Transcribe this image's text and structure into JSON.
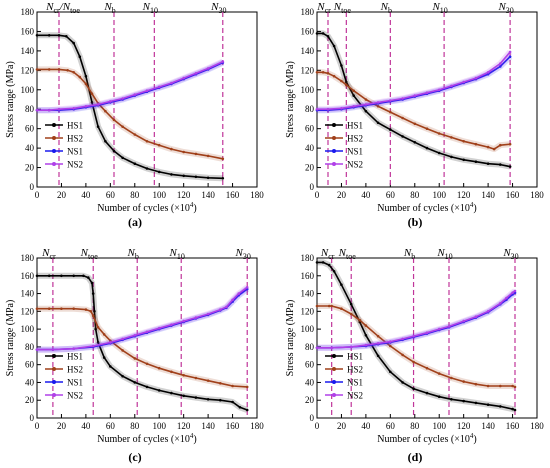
{
  "chart_data": [
    {
      "panel_label": "(a)",
      "type": "line",
      "xlabel": "Number of cycles (×10",
      "xlabel_exp": "4",
      "ylabel": "Stress range (MPa)",
      "xlim": [
        0,
        180
      ],
      "ylim": [
        0,
        180
      ],
      "xticks": [
        0,
        20,
        40,
        60,
        80,
        100,
        120,
        140,
        160,
        180
      ],
      "yticks": [
        0,
        20,
        40,
        60,
        80,
        100,
        120,
        140,
        160,
        180
      ],
      "markers": [
        {
          "label": "N",
          "sub": "cr",
          "x": 18,
          "label2": "/N",
          "sub2": "toe"
        },
        {
          "label": "N",
          "sub": "b",
          "x": 63
        },
        {
          "label": "N",
          "sub": "10",
          "x": 96
        },
        {
          "label": "N",
          "sub": "30",
          "x": 152
        }
      ],
      "legend": [
        "HS1",
        "HS2",
        "NS1",
        "NS2"
      ],
      "series": [
        {
          "name": "HS1",
          "color": "#000000",
          "x": [
            0,
            10,
            18,
            24,
            30,
            35,
            40,
            45,
            50,
            56,
            63,
            70,
            80,
            90,
            100,
            110,
            120,
            130,
            140,
            152
          ],
          "y": [
            156,
            156,
            156,
            155,
            148,
            134,
            114,
            87,
            62,
            47,
            37,
            30,
            24,
            19,
            15.5,
            13,
            11.5,
            10.5,
            9.5,
            9
          ]
        },
        {
          "name": "HS2",
          "color": "#a0401a",
          "x": [
            0,
            10,
            18,
            25,
            30,
            35,
            40,
            45,
            50,
            56,
            63,
            70,
            80,
            90,
            100,
            110,
            120,
            130,
            140,
            152
          ],
          "y": [
            121,
            121,
            121,
            120,
            118,
            113,
            106,
            96,
            86,
            78,
            69,
            62,
            54,
            47,
            43,
            39,
            36,
            34,
            32,
            29
          ]
        },
        {
          "name": "NS1",
          "color": "#1a1aee",
          "x": [
            0,
            10,
            18,
            30,
            40,
            50,
            60,
            70,
            80,
            90,
            100,
            110,
            120,
            130,
            140,
            152
          ],
          "y": [
            79,
            79,
            79,
            80,
            82,
            84,
            87,
            90,
            94,
            98,
            102,
            106,
            111,
            116,
            121,
            128
          ]
        },
        {
          "name": "NS2",
          "color": "#b040e8",
          "x": [
            0,
            10,
            18,
            30,
            40,
            50,
            60,
            70,
            80,
            90,
            100,
            110,
            120,
            130,
            140,
            152
          ],
          "y": [
            79,
            79,
            80,
            81,
            83,
            85,
            88,
            91,
            95,
            99,
            103,
            107,
            112,
            117,
            122,
            129
          ]
        }
      ]
    },
    {
      "panel_label": "(b)",
      "type": "line",
      "xlabel": "Number of cycles (×10",
      "xlabel_exp": "4",
      "ylabel": "Stress range (MPa)",
      "xlim": [
        0,
        180
      ],
      "ylim": [
        0,
        180
      ],
      "xticks": [
        0,
        20,
        40,
        60,
        80,
        100,
        120,
        140,
        160,
        180
      ],
      "yticks": [
        0,
        20,
        40,
        60,
        80,
        100,
        120,
        140,
        160,
        180
      ],
      "markers": [
        {
          "label": "N",
          "sub": "cr",
          "x": 9
        },
        {
          "label": "N",
          "sub": "toe",
          "x": 24
        },
        {
          "label": "N",
          "sub": "b",
          "x": 60
        },
        {
          "label": "N",
          "sub": "10",
          "x": 104
        },
        {
          "label": "N",
          "sub": "30",
          "x": 158
        }
      ],
      "legend": [
        "HS1",
        "HS2",
        "NS1",
        "NS2"
      ],
      "series": [
        {
          "name": "HS1",
          "color": "#000000",
          "x": [
            0,
            5,
            9,
            14,
            20,
            24,
            30,
            40,
            50,
            60,
            70,
            80,
            90,
            100,
            110,
            120,
            130,
            140,
            150,
            158
          ],
          "y": [
            158,
            158,
            155,
            145,
            125,
            108,
            94,
            78,
            66,
            59,
            52,
            46,
            40,
            35,
            31,
            28,
            26,
            24,
            23,
            21
          ]
        },
        {
          "name": "HS2",
          "color": "#a0401a",
          "x": [
            0,
            5,
            9,
            14,
            20,
            24,
            30,
            40,
            50,
            60,
            70,
            80,
            90,
            100,
            110,
            120,
            130,
            140,
            145,
            150,
            158
          ],
          "y": [
            118,
            118,
            117,
            114,
            109,
            105,
            99,
            90,
            83,
            77,
            71,
            65,
            60,
            55,
            51,
            47,
            44,
            41,
            39,
            43,
            44
          ]
        },
        {
          "name": "NS1",
          "color": "#1a1aee",
          "x": [
            0,
            9,
            20,
            30,
            40,
            50,
            60,
            70,
            80,
            90,
            100,
            110,
            120,
            130,
            140,
            150,
            158
          ],
          "y": [
            79,
            79,
            80,
            82,
            84,
            86,
            88,
            90,
            93,
            96,
            99,
            103,
            107,
            111,
            116,
            124,
            134
          ]
        },
        {
          "name": "NS2",
          "color": "#b040e8",
          "x": [
            0,
            9,
            20,
            30,
            40,
            50,
            60,
            70,
            80,
            90,
            100,
            110,
            120,
            130,
            140,
            150,
            158
          ],
          "y": [
            80,
            80,
            81,
            83,
            85,
            87,
            89,
            91,
            94,
            97,
            100,
            104,
            108,
            112,
            118,
            127,
            139
          ]
        }
      ]
    },
    {
      "panel_label": "(c)",
      "type": "line",
      "xlabel": "Number of cycles (×10",
      "xlabel_exp": "4",
      "ylabel": "Stress range (MPa)",
      "xlim": [
        0,
        180
      ],
      "ylim": [
        0,
        180
      ],
      "xticks": [
        0,
        20,
        40,
        60,
        80,
        100,
        120,
        140,
        160,
        180
      ],
      "yticks": [
        0,
        20,
        40,
        60,
        80,
        100,
        120,
        140,
        160,
        180
      ],
      "markers": [
        {
          "label": "N",
          "sub": "cr",
          "x": 13
        },
        {
          "label": "N",
          "sub": "toe",
          "x": 46
        },
        {
          "label": "N",
          "sub": "b",
          "x": 82
        },
        {
          "label": "N",
          "sub": "10",
          "x": 118
        },
        {
          "label": "N",
          "sub": "30",
          "x": 172
        }
      ],
      "legend": [
        "HS1",
        "HS2",
        "NS1",
        "NS2"
      ],
      "series": [
        {
          "name": "HS1",
          "color": "#000000",
          "x": [
            0,
            10,
            20,
            30,
            38,
            42,
            45,
            46,
            47,
            48,
            50,
            55,
            60,
            70,
            80,
            90,
            100,
            110,
            120,
            130,
            140,
            150,
            160,
            166,
            172
          ],
          "y": [
            160,
            160,
            160,
            160,
            160,
            158,
            152,
            140,
            120,
            100,
            85,
            68,
            58,
            47,
            40,
            35,
            31,
            28,
            25,
            23,
            21,
            20,
            18,
            12,
            9
          ]
        },
        {
          "name": "HS2",
          "color": "#a0401a",
          "x": [
            0,
            10,
            20,
            30,
            40,
            44,
            46,
            50,
            55,
            60,
            70,
            80,
            90,
            100,
            110,
            120,
            130,
            140,
            150,
            160,
            172
          ],
          "y": [
            123,
            123,
            123,
            123,
            122,
            120,
            115,
            102,
            94,
            87,
            76,
            67,
            61,
            56,
            52,
            48,
            45,
            42,
            39,
            36,
            35
          ]
        },
        {
          "name": "NS1",
          "color": "#1a1aee",
          "x": [
            0,
            13,
            30,
            46,
            60,
            70,
            80,
            90,
            100,
            110,
            120,
            130,
            140,
            150,
            155,
            160,
            165,
            172
          ],
          "y": [
            77,
            77,
            78,
            80,
            84,
            88,
            92,
            96,
            100,
            104,
            108,
            112,
            116,
            121,
            124,
            131,
            138,
            145
          ]
        },
        {
          "name": "NS2",
          "color": "#b040e8",
          "x": [
            0,
            13,
            30,
            46,
            60,
            70,
            80,
            90,
            100,
            110,
            120,
            130,
            140,
            150,
            155,
            160,
            165,
            172
          ],
          "y": [
            77,
            77,
            78,
            81,
            85,
            89,
            93,
            97,
            101,
            105,
            109,
            113,
            117,
            122,
            125,
            133,
            140,
            147
          ]
        }
      ]
    },
    {
      "panel_label": "(d)",
      "type": "line",
      "xlabel": "Number of cycles (×10",
      "xlabel_exp": "4",
      "ylabel": "Stress range (MPa)",
      "xlim": [
        0,
        180
      ],
      "ylim": [
        0,
        180
      ],
      "xticks": [
        0,
        20,
        40,
        60,
        80,
        100,
        120,
        140,
        160,
        180
      ],
      "yticks": [
        0,
        20,
        40,
        60,
        80,
        100,
        120,
        140,
        160,
        180
      ],
      "markers": [
        {
          "label": "N",
          "sub": "cr",
          "x": 12
        },
        {
          "label": "N",
          "sub": "toe",
          "x": 28
        },
        {
          "label": "N",
          "sub": "b",
          "x": 79
        },
        {
          "label": "N",
          "sub": "10",
          "x": 108
        },
        {
          "label": "N",
          "sub": "30",
          "x": 162
        }
      ],
      "legend": [
        "HS1",
        "HS2",
        "NS1",
        "NS2"
      ],
      "series": [
        {
          "name": "HS1",
          "color": "#000000",
          "x": [
            0,
            5,
            10,
            14,
            20,
            28,
            35,
            40,
            50,
            60,
            70,
            79,
            90,
            100,
            110,
            120,
            130,
            140,
            150,
            160,
            162
          ],
          "y": [
            175,
            175,
            172,
            165,
            150,
            128,
            108,
            93,
            70,
            52,
            40,
            33,
            28,
            24,
            21,
            19,
            17,
            15,
            13,
            10,
            9
          ]
        },
        {
          "name": "HS2",
          "color": "#a0401a",
          "x": [
            0,
            10,
            12,
            20,
            28,
            35,
            40,
            50,
            60,
            70,
            79,
            90,
            100,
            110,
            120,
            130,
            140,
            150,
            160,
            162
          ],
          "y": [
            126,
            126,
            126,
            123,
            117,
            110,
            104,
            92,
            81,
            71,
            63,
            56,
            50,
            45,
            41,
            38,
            36,
            36,
            36,
            35
          ]
        },
        {
          "name": "NS1",
          "color": "#1a1aee",
          "x": [
            0,
            12,
            28,
            40,
            50,
            60,
            70,
            79,
            90,
            100,
            108,
            120,
            130,
            140,
            150,
            155,
            160,
            162
          ],
          "y": [
            79,
            79,
            80,
            81,
            83,
            85,
            88,
            91,
            95,
            99,
            102,
            108,
            113,
            119,
            128,
            133,
            139,
            141
          ]
        },
        {
          "name": "NS2",
          "color": "#b040e8",
          "x": [
            0,
            12,
            28,
            40,
            50,
            60,
            70,
            79,
            90,
            100,
            108,
            120,
            130,
            140,
            150,
            155,
            160,
            162
          ],
          "y": [
            79,
            79,
            80,
            82,
            84,
            86,
            89,
            92,
            96,
            100,
            103,
            109,
            114,
            120,
            129,
            135,
            141,
            143
          ]
        }
      ]
    }
  ]
}
